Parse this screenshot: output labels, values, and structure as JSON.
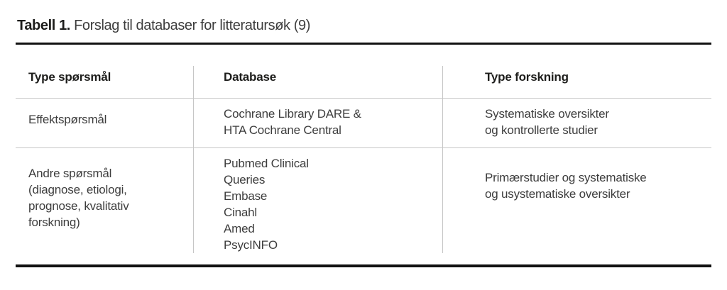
{
  "title": {
    "prefix": "Tabell 1.",
    "rest": " Forslag til databaser for litteratursøk (9)"
  },
  "table": {
    "headers": [
      "Type spørsmål",
      "Database",
      "Type forskning"
    ],
    "rows": [
      {
        "cells": [
          {
            "lines": [
              "Effektspørsmål"
            ]
          },
          {
            "lines": [
              "Cochrane Library DARE &",
              "HTA Cochrane Central"
            ]
          },
          {
            "lines": [
              "Systematiske oversikter",
              "og kontrollerte studier"
            ]
          }
        ]
      },
      {
        "cells": [
          {
            "lines": [
              "Andre spørsmål",
              "(diagnose, etiologi,",
              "prognose, kvalitativ",
              "forskning)"
            ]
          },
          {
            "lines": [
              "Pubmed Clinical",
              "Queries",
              "Embase",
              "Cinahl",
              "Amed",
              "PsycINFO"
            ]
          },
          {
            "lines": [
              "Primærstudier og systematiske",
              "og usystematiske oversikter"
            ]
          }
        ]
      }
    ]
  },
  "colors": {
    "heading_text": "#1d1d1b",
    "body_text": "#3d3d3d",
    "rule": "#121212",
    "grid_line": "#c6c6c6",
    "background": "#ffffff"
  }
}
